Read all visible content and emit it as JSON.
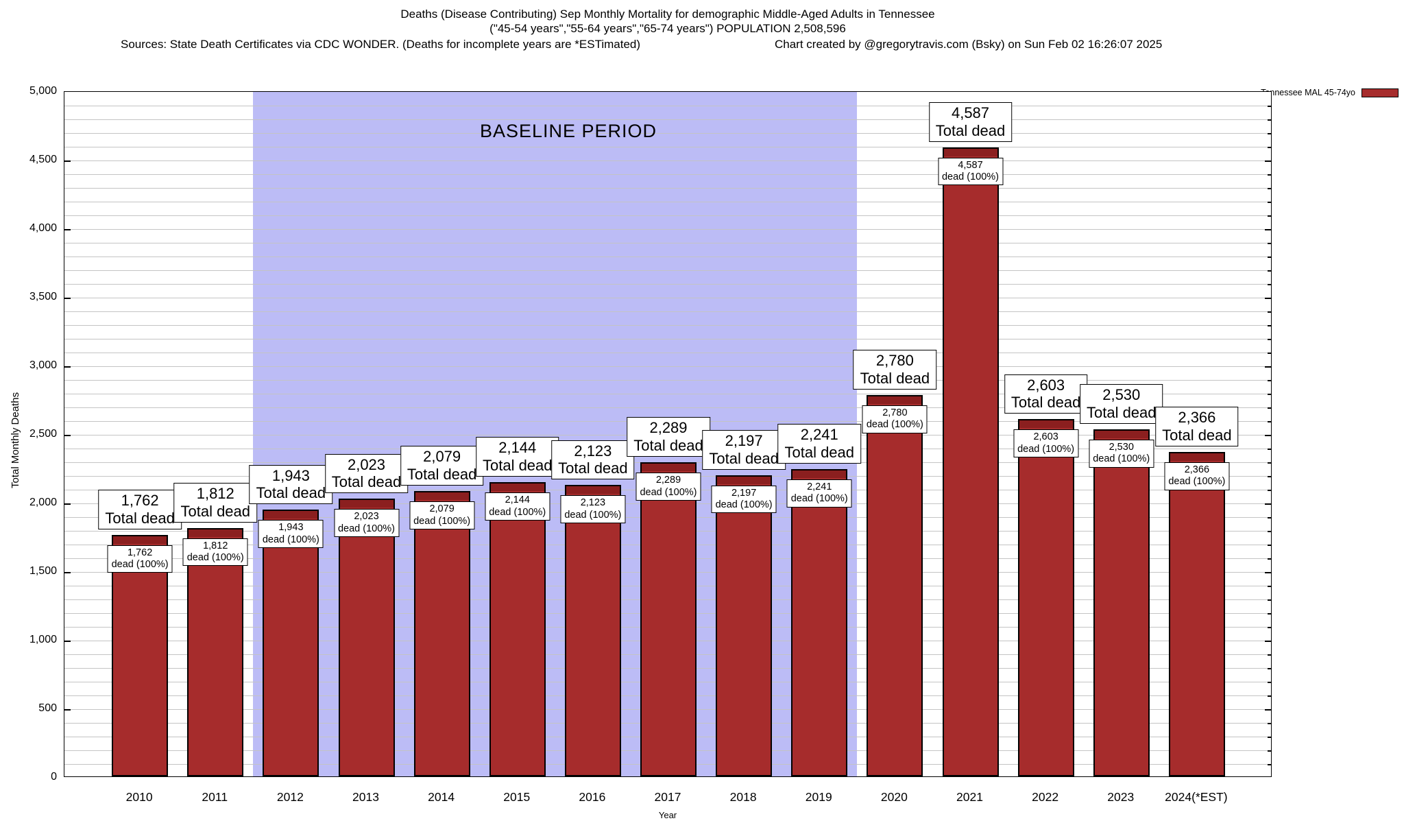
{
  "header": {
    "title": "Deaths (Disease Contributing) Sep Monthly Mortality for demographic Middle-Aged Adults in Tennessee",
    "subtitle": "(\"45-54 years\",\"55-64 years\",\"65-74 years\") POPULATION 2,508,596",
    "source_note": "Sources: State Death Certificates via CDC WONDER. (Deaths for incomplete years are *ESTimated)",
    "credit": "Chart created by @gregorytravis.com (Bsky) on Sun Feb 02 16:26:07 2025"
  },
  "legend": {
    "label": "Tennessee MAL 45-74yo",
    "swatch_color": "#a62c2c"
  },
  "chart_data": {
    "type": "bar",
    "title": "Deaths (Disease Contributing) Sep Monthly Mortality for demographic Middle-Aged Adults in Tennessee",
    "xlabel": "Year",
    "ylabel": "Total Monthly Deaths",
    "ylim": [
      0,
      5000
    ],
    "y_major_step": 500,
    "y_minor_step": 100,
    "grid": true,
    "legend_position": "top-right",
    "series_name": "Tennessee MAL 45-74yo",
    "categories": [
      "2010",
      "2011",
      "2012",
      "2013",
      "2014",
      "2015",
      "2016",
      "2017",
      "2018",
      "2019",
      "2020",
      "2021",
      "2022",
      "2023",
      "2024(*EST)"
    ],
    "values": [
      1762,
      1812,
      1943,
      2023,
      2079,
      2144,
      2123,
      2289,
      2197,
      2241,
      2780,
      4587,
      2603,
      2530,
      2366
    ],
    "values_formatted": [
      "1,762",
      "1,812",
      "1,943",
      "2,023",
      "2,079",
      "2,144",
      "2,123",
      "2,289",
      "2,197",
      "2,241",
      "2,780",
      "4,587",
      "2,603",
      "2,530",
      "2,366"
    ],
    "y_tick_labels": [
      "0",
      "500",
      "1,000",
      "1,500",
      "2,000",
      "2,500",
      "3,000",
      "3,500",
      "4,000",
      "4,500",
      "5,000"
    ],
    "total_label_suffix": "Total dead",
    "inbar_label_suffix": "dead (100%)",
    "baseline_period": {
      "label": "BASELINE PERIOD",
      "start_category": "2012",
      "end_category": "2019"
    },
    "colors": {
      "bar": "#a62c2c",
      "bar_cap": "#8b1f1f",
      "baseline_shade": "#bcbcf6",
      "gridline": "#c4c4c4"
    }
  }
}
